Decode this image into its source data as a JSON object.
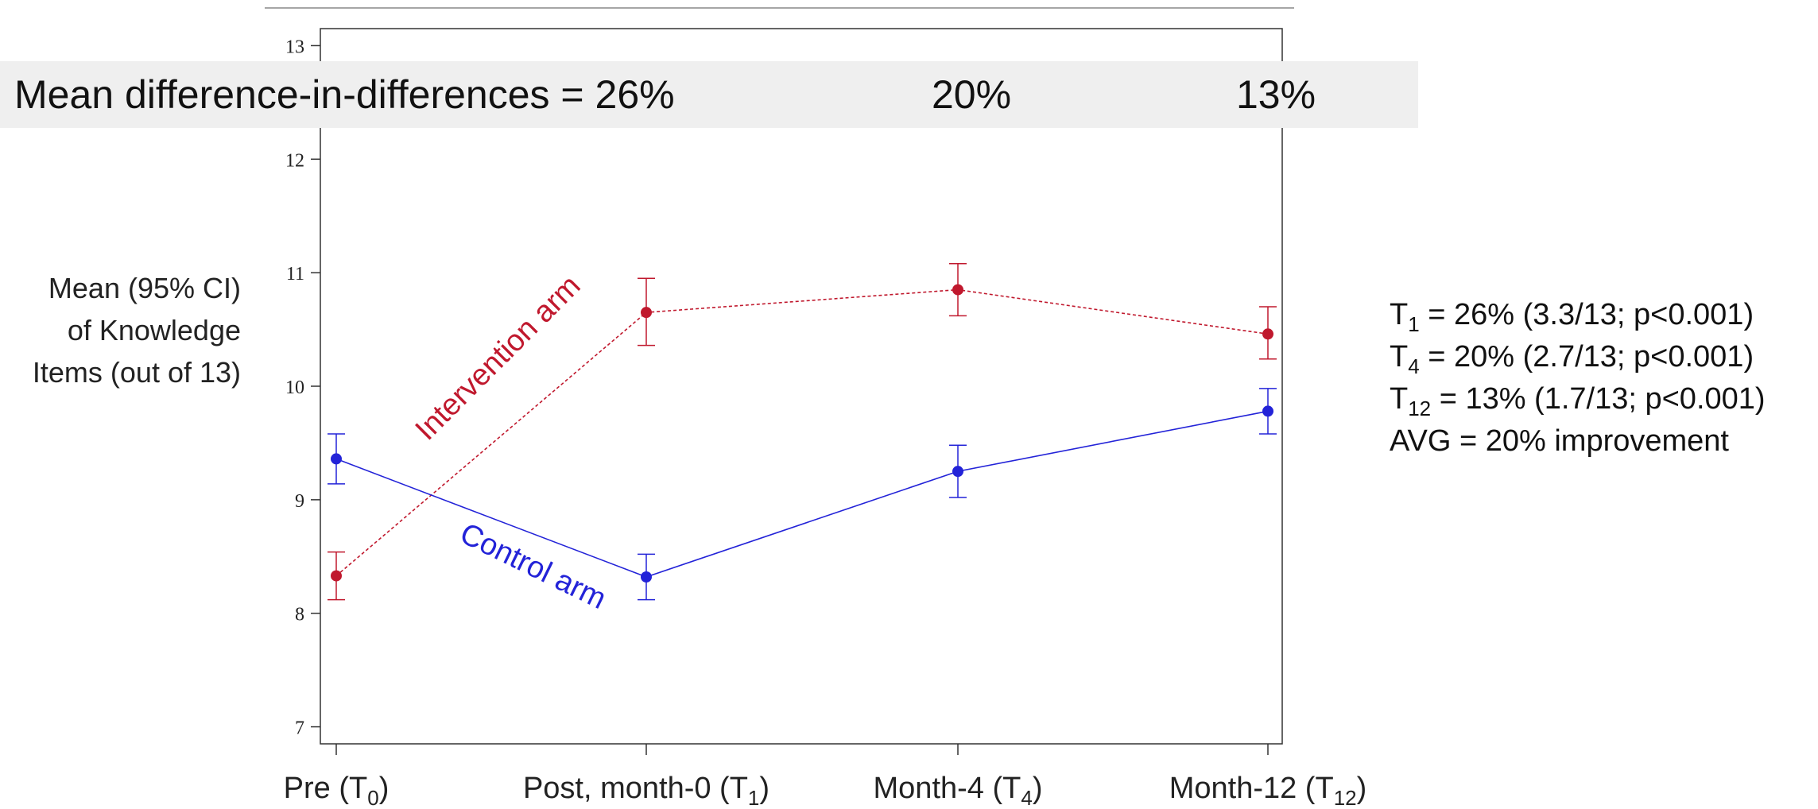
{
  "chart_data": {
    "type": "line",
    "categories": [
      "Pre (T0)",
      "Post, month-0 (T1)",
      "Month-4 (T4)",
      "Month-12 (T12)"
    ],
    "category_labels": [
      {
        "main": "Pre (T",
        "sub": "0",
        "tail": ")"
      },
      {
        "main": "Post, month-0 (T",
        "sub": "1",
        "tail": ")"
      },
      {
        "main": "Month-4 (T",
        "sub": "4",
        "tail": ")"
      },
      {
        "main": "Month-12 (T",
        "sub": "12",
        "tail": ")"
      }
    ],
    "ylabel_lines": [
      "Mean (95% CI)",
      "of Knowledge",
      "Items (out of 13)"
    ],
    "ylim": [
      6.85,
      13.15
    ],
    "yticks": [
      7,
      8,
      9,
      10,
      11,
      12,
      13
    ],
    "grid": false,
    "series": [
      {
        "name": "Intervention arm",
        "color": "#c0182d",
        "line_style": "dashed",
        "values": [
          8.33,
          10.65,
          10.85,
          10.46
        ],
        "ci_low": [
          8.12,
          10.36,
          10.62,
          10.24
        ],
        "ci_high": [
          8.54,
          10.95,
          11.08,
          10.7
        ]
      },
      {
        "name": "Control arm",
        "color": "#2323d8",
        "line_style": "solid",
        "values": [
          9.36,
          8.32,
          9.25,
          9.78
        ],
        "ci_low": [
          9.14,
          8.12,
          9.02,
          9.58
        ],
        "ci_high": [
          9.58,
          8.52,
          9.48,
          9.98
        ]
      }
    ]
  },
  "banner": {
    "label": "Mean difference-in-differences = 26%",
    "value_t4": "20%",
    "value_t12": "13%"
  },
  "stats": [
    {
      "prefix": "T",
      "sub": "1",
      "text": "  = 26% (3.3/13; p<0.001)"
    },
    {
      "prefix": "T",
      "sub": "4",
      "text": "  = 20% (2.7/13; p<0.001)"
    },
    {
      "prefix": "T",
      "sub": "12",
      "text": " = 13% (1.7/13; p<0.001)"
    },
    {
      "prefix": "AVG = 20% improvement",
      "sub": "",
      "text": ""
    }
  ]
}
